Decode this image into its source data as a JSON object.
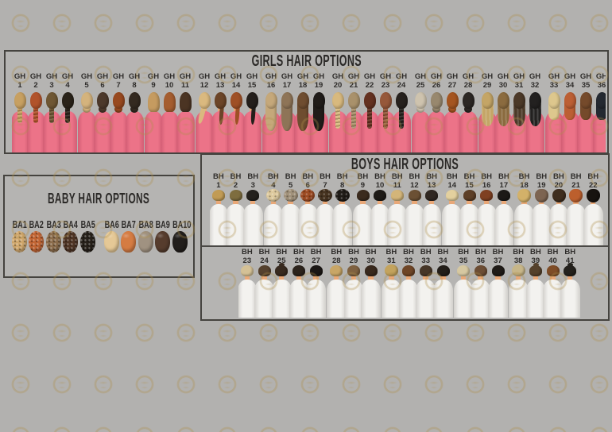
{
  "page": {
    "background": "#b2b1af",
    "watermark_gold": "#ae8f4a"
  },
  "girls_panel": {
    "title": "GIRLS HAIR OPTIONS",
    "label_prefix": "GH",
    "shirt_color": "#ec7388",
    "shirt_shade": "#d45f76",
    "skin_color": "#e9a878",
    "group_breaks": [
      4,
      8,
      11,
      15,
      19,
      24,
      28,
      32
    ],
    "items": [
      {
        "n": "1",
        "s": "braid",
        "c": "#c7a061"
      },
      {
        "n": "2",
        "s": "braid",
        "c": "#b1532b"
      },
      {
        "n": "3",
        "s": "braid",
        "c": "#6f5733"
      },
      {
        "n": "4",
        "s": "braid",
        "c": "#2a2319"
      },
      {
        "n": "5",
        "s": "bun",
        "c": "#d4b37d"
      },
      {
        "n": "6",
        "s": "bun",
        "c": "#4d392b"
      },
      {
        "n": "7",
        "s": "bun",
        "c": "#98491f"
      },
      {
        "n": "8",
        "s": "bun",
        "c": "#342a20"
      },
      {
        "n": "9",
        "s": "bob",
        "c": "#c59b60"
      },
      {
        "n": "10",
        "s": "bob",
        "c": "#a55d2f"
      },
      {
        "n": "11",
        "s": "bob",
        "c": "#4b3423"
      },
      {
        "n": "12",
        "s": "sideponytail",
        "c": "#dab97f"
      },
      {
        "n": "13",
        "s": "ponytail",
        "c": "#6c4528"
      },
      {
        "n": "14",
        "s": "ponytail",
        "c": "#9f5026"
      },
      {
        "n": "15",
        "s": "ponytail",
        "c": "#241f1b"
      },
      {
        "n": "16",
        "s": "long",
        "c": "#c5a87a"
      },
      {
        "n": "17",
        "s": "long",
        "c": "#8e7457"
      },
      {
        "n": "18",
        "s": "long",
        "c": "#6f4d30"
      },
      {
        "n": "19",
        "s": "long",
        "c": "#201c19"
      },
      {
        "n": "20",
        "s": "longbraid",
        "c": "#d8b97e"
      },
      {
        "n": "21",
        "s": "longbraid",
        "c": "#a9916b"
      },
      {
        "n": "22",
        "s": "longbraid",
        "c": "#643120"
      },
      {
        "n": "23",
        "s": "longbraid",
        "c": "#96583a"
      },
      {
        "n": "24",
        "s": "longbraid",
        "c": "#27221e"
      },
      {
        "n": "25",
        "s": "bun",
        "c": "#cec3ae"
      },
      {
        "n": "26",
        "s": "bun",
        "c": "#98886e"
      },
      {
        "n": "27",
        "s": "bun",
        "c": "#a55520"
      },
      {
        "n": "28",
        "s": "bun",
        "c": "#2c2724"
      },
      {
        "n": "29",
        "s": "wavy",
        "c": "#c4a566"
      },
      {
        "n": "30",
        "s": "wavy",
        "c": "#8b6b3f"
      },
      {
        "n": "31",
        "s": "wavy",
        "c": "#4c3928"
      },
      {
        "n": "32",
        "s": "wavy",
        "c": "#232120"
      },
      {
        "n": "33",
        "s": "straight",
        "c": "#ddc78d"
      },
      {
        "n": "34",
        "s": "straight",
        "c": "#bc5f34"
      },
      {
        "n": "35",
        "s": "straight",
        "c": "#754a2b"
      },
      {
        "n": "36",
        "s": "straight",
        "c": "#242931"
      }
    ]
  },
  "boys_panel": {
    "title": "BOYS HAIR OPTIONS",
    "label_prefix": "BH",
    "shirt_color": "#f3f2ef",
    "shirt_shade": "#d5d3cf",
    "skin_color": "#e9a878",
    "row1_group_breaks": [
      3,
      8,
      13,
      17
    ],
    "row2_group_breaks": [
      5,
      8,
      12,
      15
    ],
    "row1": [
      {
        "n": "1",
        "s": "short",
        "c": "#c19b55"
      },
      {
        "n": "2",
        "s": "short",
        "c": "#7e6d3f"
      },
      {
        "n": "3",
        "s": "short",
        "c": "#24211d"
      },
      {
        "n": "4",
        "s": "curly",
        "c": "#ddc99d"
      },
      {
        "n": "5",
        "s": "curly",
        "c": "#a1917a"
      },
      {
        "n": "6",
        "s": "curly",
        "c": "#9d4b23"
      },
      {
        "n": "7",
        "s": "curly",
        "c": "#463320"
      },
      {
        "n": "8",
        "s": "curly",
        "c": "#211d18"
      },
      {
        "n": "9",
        "s": "short",
        "c": "#3b2b1e"
      },
      {
        "n": "10",
        "s": "short",
        "c": "#1f1b17"
      },
      {
        "n": "11",
        "s": "short",
        "c": "#d3b579"
      },
      {
        "n": "12",
        "s": "short",
        "c": "#6b5034"
      },
      {
        "n": "13",
        "s": "short",
        "c": "#302721"
      },
      {
        "n": "14",
        "s": "short",
        "c": "#e3d09e"
      },
      {
        "n": "15",
        "s": "short",
        "c": "#5d3f27"
      },
      {
        "n": "16",
        "s": "short",
        "c": "#7f4021"
      },
      {
        "n": "17",
        "s": "short",
        "c": "#1c1916"
      },
      {
        "n": "18",
        "s": "shaggy",
        "c": "#d3b169"
      },
      {
        "n": "19",
        "s": "shaggy",
        "c": "#7d6451"
      },
      {
        "n": "20",
        "s": "shaggy",
        "c": "#3f2e1f"
      },
      {
        "n": "21",
        "s": "shaggy",
        "c": "#bc5f2d"
      },
      {
        "n": "22",
        "s": "shaggy",
        "c": "#17130f"
      }
    ],
    "row2": [
      {
        "n": "23",
        "s": "short",
        "c": "#d4c196"
      },
      {
        "n": "24",
        "s": "short",
        "c": "#55412d"
      },
      {
        "n": "25",
        "s": "manbun",
        "c": "#382a1f"
      },
      {
        "n": "26",
        "s": "short",
        "c": "#2c231b"
      },
      {
        "n": "27",
        "s": "short",
        "c": "#1b1714"
      },
      {
        "n": "28",
        "s": "short",
        "c": "#c8a666"
      },
      {
        "n": "29",
        "s": "short",
        "c": "#7f6140"
      },
      {
        "n": "30",
        "s": "short",
        "c": "#39291d"
      },
      {
        "n": "31",
        "s": "fluffy",
        "c": "#c3a35d"
      },
      {
        "n": "32",
        "s": "short",
        "c": "#6f4627"
      },
      {
        "n": "33",
        "s": "short",
        "c": "#463627"
      },
      {
        "n": "34",
        "s": "short",
        "c": "#231e19"
      },
      {
        "n": "35",
        "s": "short",
        "c": "#d6c8a1"
      },
      {
        "n": "36",
        "s": "short",
        "c": "#6c4d34"
      },
      {
        "n": "37",
        "s": "short",
        "c": "#201b17"
      },
      {
        "n": "38",
        "s": "fluffy",
        "c": "#c7b689"
      },
      {
        "n": "39",
        "s": "manbun",
        "c": "#55412b"
      },
      {
        "n": "40",
        "s": "short",
        "c": "#7f4d27"
      },
      {
        "n": "41",
        "s": "manbun",
        "c": "#24211c"
      }
    ]
  },
  "baby_panel": {
    "title": "BABY HAIR OPTIONS",
    "label_prefix": "BA",
    "group_breaks": [
      5
    ],
    "items": [
      {
        "n": "1",
        "s": "curly",
        "c": "#d0a76c"
      },
      {
        "n": "2",
        "s": "curly",
        "c": "#c16433"
      },
      {
        "n": "3",
        "s": "curly",
        "c": "#8b6c4b"
      },
      {
        "n": "4",
        "s": "curly",
        "c": "#4f3525"
      },
      {
        "n": "5",
        "s": "curly",
        "c": "#27211a"
      },
      {
        "n": "6",
        "s": "smooth",
        "c": "#e5c896"
      },
      {
        "n": "7",
        "s": "smooth",
        "c": "#d57c43"
      },
      {
        "n": "8",
        "s": "smooth",
        "c": "#a09281"
      },
      {
        "n": "9",
        "s": "smooth",
        "c": "#563c2d"
      },
      {
        "n": "10",
        "s": "smooth",
        "c": "#221e1b"
      }
    ]
  }
}
